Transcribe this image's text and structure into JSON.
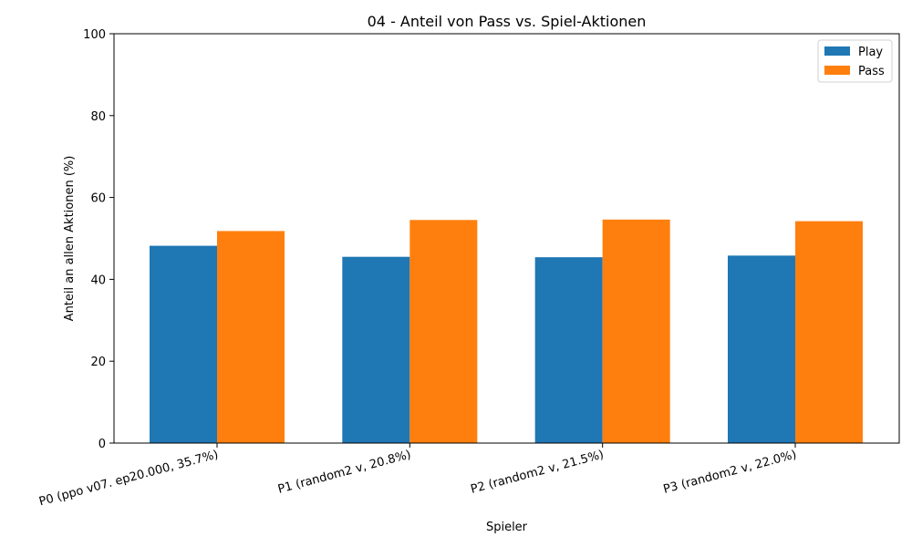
{
  "chart_data": {
    "type": "bar",
    "title": "04 - Anteil von Pass vs. Spiel-Aktionen",
    "xlabel": "Spieler",
    "ylabel": "Anteil an allen Aktionen (%)",
    "ylim": [
      0,
      100
    ],
    "yticks": [
      0,
      20,
      40,
      60,
      80,
      100
    ],
    "categories": [
      "P0 (ppo v07. ep20.000, 35.7%)",
      "P1 (random2 v, 20.8%)",
      "P2 (random2 v, 21.5%)",
      "P3 (random2 v, 22.0%)"
    ],
    "series": [
      {
        "name": "Play",
        "color": "#1f77b4",
        "values": [
          48.2,
          45.5,
          45.4,
          45.8
        ]
      },
      {
        "name": "Pass",
        "color": "#ff7f0e",
        "values": [
          51.8,
          54.5,
          54.6,
          54.2
        ]
      }
    ],
    "legend_position": "top-right",
    "grid": false
  }
}
